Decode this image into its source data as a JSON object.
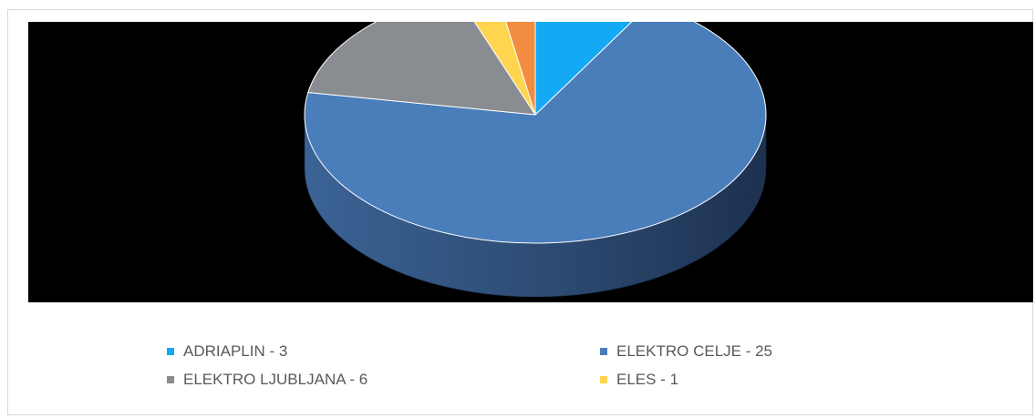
{
  "chart_data": {
    "type": "pie",
    "title": "",
    "categories": [
      "ADRIAPLIN - 3",
      "ELEKTRO CELJE - 25",
      "ELEKTRO LJUBLJANA - 6",
      "ELES - 1",
      ""
    ],
    "values": [
      3,
      25,
      6,
      1,
      1
    ],
    "colors": [
      "#13a9f5",
      "#4a7ebb",
      "#898c91",
      "#ffd54f",
      "#f28c41"
    ],
    "style": "3d-pie",
    "background": "#000000",
    "legend_position": "bottom"
  },
  "legend": [
    {
      "label": "ADRIAPLIN - 3",
      "color": "#13a9f5"
    },
    {
      "label": "ELEKTRO CELJE - 25",
      "color": "#4a7ebb"
    },
    {
      "label": "ELEKTRO LJUBLJANA - 6",
      "color": "#898c91"
    },
    {
      "label": "ELES - 1",
      "color": "#ffd54f"
    }
  ]
}
